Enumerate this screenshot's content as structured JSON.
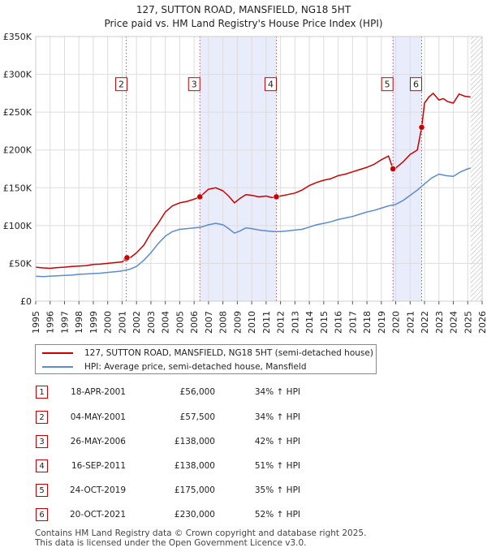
{
  "chart_data": {
    "type": "line",
    "title": "127, SUTTON ROAD, MANSFIELD, NG18 5HT",
    "subtitle": "Price paid vs. HM Land Registry's House Price Index (HPI)",
    "xlabel": "",
    "ylabel": "",
    "xlim": [
      1995,
      2026
    ],
    "ylim": [
      0,
      350000
    ],
    "x_ticks": [
      1995,
      1996,
      1997,
      1998,
      1999,
      2000,
      2001,
      2002,
      2003,
      2004,
      2005,
      2006,
      2007,
      2008,
      2009,
      2010,
      2011,
      2012,
      2013,
      2014,
      2015,
      2016,
      2017,
      2018,
      2019,
      2020,
      2021,
      2022,
      2023,
      2024,
      2025,
      2026
    ],
    "y_ticks": [
      {
        "value": 0,
        "label": "£0"
      },
      {
        "value": 50000,
        "label": "£50K"
      },
      {
        "value": 100000,
        "label": "£100K"
      },
      {
        "value": 150000,
        "label": "£150K"
      },
      {
        "value": 200000,
        "label": "£200K"
      },
      {
        "value": 250000,
        "label": "£250K"
      },
      {
        "value": 300000,
        "label": "£300K"
      },
      {
        "value": 350000,
        "label": "£350K"
      }
    ],
    "shaded_ranges": [
      [
        2006.4,
        2011.7
      ],
      [
        2019.8,
        2021.8
      ]
    ],
    "forecast_from": 2025.2,
    "series": [
      {
        "name": "127, SUTTON ROAD, MANSFIELD, NG18 5HT (semi-detached house)",
        "color": "#cc0000",
        "x": [
          1995.0,
          1995.5,
          1996.0,
          1996.5,
          1997.0,
          1997.5,
          1998.0,
          1998.5,
          1999.0,
          1999.5,
          2000.0,
          2000.5,
          2001.0,
          2001.29,
          2001.34,
          2001.6,
          2002.0,
          2002.5,
          2003.0,
          2003.5,
          2004.0,
          2004.5,
          2005.0,
          2005.5,
          2006.0,
          2006.4,
          2006.7,
          2007.0,
          2007.5,
          2008.0,
          2008.4,
          2008.8,
          2009.2,
          2009.6,
          2010.0,
          2010.5,
          2011.0,
          2011.4,
          2011.71,
          2012.0,
          2012.5,
          2013.0,
          2013.5,
          2014.0,
          2014.5,
          2015.0,
          2015.5,
          2016.0,
          2016.5,
          2017.0,
          2017.5,
          2018.0,
          2018.5,
          2019.0,
          2019.5,
          2019.81,
          2020.0,
          2020.5,
          2021.0,
          2021.5,
          2021.8,
          2022.0,
          2022.3,
          2022.6,
          2023.0,
          2023.3,
          2023.6,
          2024.0,
          2024.4,
          2024.8,
          2025.2
        ],
        "y": [
          45000,
          44000,
          43500,
          44500,
          45000,
          46000,
          46500,
          47000,
          48500,
          49000,
          50000,
          51000,
          52000,
          56000,
          57500,
          58000,
          64000,
          74000,
          90000,
          103000,
          118000,
          126000,
          130000,
          132000,
          135000,
          138000,
          143000,
          148000,
          150000,
          146000,
          139000,
          130000,
          136000,
          141000,
          140000,
          138000,
          139000,
          137000,
          138000,
          139000,
          141000,
          143000,
          147000,
          153000,
          157000,
          160000,
          162000,
          166000,
          168000,
          171000,
          174000,
          177000,
          181000,
          187000,
          192000,
          175000,
          176000,
          184000,
          194000,
          200000,
          230000,
          262000,
          270000,
          275000,
          266000,
          268000,
          264000,
          262000,
          274000,
          271000,
          270000
        ]
      },
      {
        "name": "HPI: Average price, semi-detached house, Mansfield",
        "color": "#5b8bd0",
        "x": [
          1995.0,
          1995.5,
          1996.0,
          1996.5,
          1997.0,
          1997.5,
          1998.0,
          1998.5,
          1999.0,
          1999.5,
          2000.0,
          2000.5,
          2001.0,
          2001.5,
          2002.0,
          2002.5,
          2003.0,
          2003.5,
          2004.0,
          2004.5,
          2005.0,
          2005.5,
          2006.0,
          2006.5,
          2007.0,
          2007.5,
          2008.0,
          2008.4,
          2008.8,
          2009.2,
          2009.6,
          2010.0,
          2010.5,
          2011.0,
          2011.5,
          2012.0,
          2012.5,
          2013.0,
          2013.5,
          2014.0,
          2014.5,
          2015.0,
          2015.5,
          2016.0,
          2016.5,
          2017.0,
          2017.5,
          2018.0,
          2018.5,
          2019.0,
          2019.5,
          2020.0,
          2020.5,
          2021.0,
          2021.5,
          2022.0,
          2022.5,
          2023.0,
          2023.5,
          2024.0,
          2024.5,
          2025.0,
          2025.2
        ],
        "y": [
          33000,
          32500,
          33000,
          33500,
          34000,
          34500,
          35500,
          36000,
          36500,
          37000,
          38000,
          39000,
          40000,
          42000,
          46000,
          54000,
          64000,
          76000,
          86000,
          92000,
          95000,
          96000,
          97000,
          98000,
          101000,
          103000,
          101000,
          96000,
          90000,
          93000,
          97000,
          96000,
          94000,
          93000,
          92000,
          92000,
          93000,
          94000,
          95000,
          98000,
          101000,
          103000,
          105000,
          108000,
          110000,
          112000,
          115000,
          118000,
          120000,
          123000,
          126000,
          128000,
          133000,
          140000,
          147000,
          155000,
          163000,
          168000,
          166000,
          165000,
          171000,
          175000,
          176000
        ]
      }
    ],
    "sales": [
      {
        "num": "1",
        "x": 2001.29,
        "y": 56000
      },
      {
        "num": "2",
        "x": 2001.34,
        "y": 57500
      },
      {
        "num": "3",
        "x": 2006.4,
        "y": 138000
      },
      {
        "num": "4",
        "x": 2011.71,
        "y": 138000
      },
      {
        "num": "5",
        "x": 2019.81,
        "y": 175000
      },
      {
        "num": "6",
        "x": 2021.8,
        "y": 230000
      }
    ],
    "marker_labels": [
      "2",
      "3",
      "4",
      "5",
      "6"
    ],
    "marker_label_y": 287000
  },
  "legend": {
    "items": [
      {
        "label": "127, SUTTON ROAD, MANSFIELD, NG18 5HT (semi-detached house)",
        "color": "#cc0000"
      },
      {
        "label": "HPI: Average price, semi-detached house, Mansfield",
        "color": "#5b8bd0"
      }
    ]
  },
  "sales_table": [
    {
      "num": "1",
      "date": "18-APR-2001",
      "price": "£56,000",
      "hpi": "34% ↑ HPI"
    },
    {
      "num": "2",
      "date": "04-MAY-2001",
      "price": "£57,500",
      "hpi": "34% ↑ HPI"
    },
    {
      "num": "3",
      "date": "26-MAY-2006",
      "price": "£138,000",
      "hpi": "42% ↑ HPI"
    },
    {
      "num": "4",
      "date": "16-SEP-2011",
      "price": "£138,000",
      "hpi": "51% ↑ HPI"
    },
    {
      "num": "5",
      "date": "24-OCT-2019",
      "price": "£175,000",
      "hpi": "35% ↑ HPI"
    },
    {
      "num": "6",
      "date": "20-OCT-2021",
      "price": "£230,000",
      "hpi": "52% ↑ HPI"
    }
  ],
  "footer": {
    "line1": "Contains HM Land Registry data © Crown copyright and database right 2025.",
    "line2": "This data is licensed under the Open Government Licence v3.0."
  }
}
